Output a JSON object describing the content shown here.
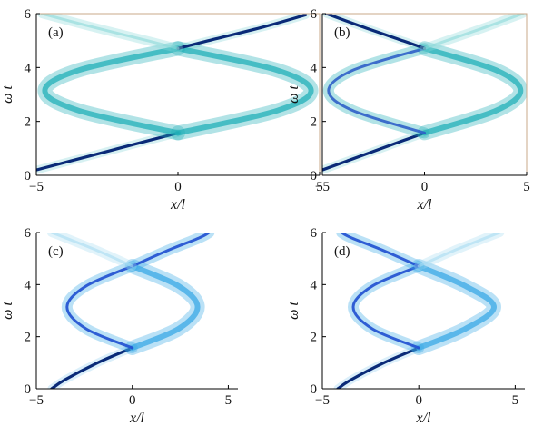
{
  "chart_data": [
    {
      "type": "heatmap",
      "panel_label": "(a)",
      "xlabel": "x/l",
      "ylabel": "ω t",
      "xlim": [
        -5,
        5
      ],
      "ylim": [
        0,
        6
      ],
      "x_ticks": [
        -5,
        0,
        5
      ],
      "y_ticks": [
        0,
        2,
        4,
        6
      ],
      "x_tick_labels": [
        "−5",
        "0",
        "5"
      ],
      "y_tick_labels": [
        "0",
        "2",
        "4",
        "6"
      ],
      "frame": "box",
      "frame_color": "#c8a88a",
      "colors": {
        "dark": "#0a2a78",
        "mid": "#2f5fc8",
        "light": "#22b0b8",
        "pale": "#8cd9d9"
      },
      "branches": [
        {
          "name": "",
          "style": "dark",
          "points": [
            [
              -5,
              0.2
            ],
            [
              -3,
              0.75
            ],
            [
              -1,
              1.3
            ],
            [
              0,
              1.57
            ]
          ]
        },
        {
          "name": "",
          "style": "light",
          "points": [
            [
              0,
              1.57
            ],
            [
              3.5,
              2.4
            ],
            [
              4.7,
              3.14
            ],
            [
              3.5,
              3.9
            ],
            [
              0,
              4.71
            ]
          ]
        },
        {
          "name": "",
          "style": "light",
          "points": [
            [
              0,
              1.57
            ],
            [
              -3.5,
              2.4
            ],
            [
              -4.7,
              3.14
            ],
            [
              -3.5,
              3.9
            ],
            [
              0,
              4.71
            ]
          ]
        },
        {
          "name": "",
          "style": "dark",
          "points": [
            [
              0,
              4.71
            ],
            [
              1,
              4.98
            ],
            [
              3,
              5.5
            ],
            [
              4.5,
              5.95
            ]
          ]
        },
        {
          "name": "",
          "style": "pale",
          "points": [
            [
              0,
              4.71
            ],
            [
              -1,
              4.98
            ],
            [
              -3,
              5.5
            ],
            [
              -4.8,
              6.0
            ]
          ]
        }
      ]
    },
    {
      "type": "heatmap",
      "panel_label": "(b)",
      "xlabel": "x/l",
      "ylabel": "ω t",
      "xlim": [
        -5,
        5
      ],
      "ylim": [
        0,
        6
      ],
      "x_ticks": [
        -5,
        0,
        5
      ],
      "y_ticks": [
        0,
        2,
        4,
        6
      ],
      "x_tick_labels": [
        "−5",
        "0",
        "5"
      ],
      "y_tick_labels": [
        "0",
        "2",
        "4",
        "6"
      ],
      "frame": "box",
      "frame_color": "#c8a88a",
      "colors": {
        "dark": "#0a2a78",
        "mid": "#2f5fc8",
        "light": "#22b0b8",
        "pale": "#8cd9d9"
      },
      "branches": [
        {
          "name": "",
          "style": "dark",
          "points": [
            [
              -5,
              0.2
            ],
            [
              -3,
              0.75
            ],
            [
              -1,
              1.3
            ],
            [
              0,
              1.57
            ]
          ]
        },
        {
          "name": "",
          "style": "light",
          "points": [
            [
              0,
              1.57
            ],
            [
              3.5,
              2.4
            ],
            [
              4.7,
              3.14
            ],
            [
              3.5,
              3.9
            ],
            [
              0,
              4.71
            ]
          ]
        },
        {
          "name": "",
          "style": "mid",
          "points": [
            [
              0,
              1.57
            ],
            [
              -3.5,
              2.4
            ],
            [
              -4.7,
              3.14
            ],
            [
              -3.5,
              3.9
            ],
            [
              0,
              4.71
            ]
          ]
        },
        {
          "name": "",
          "style": "dark",
          "points": [
            [
              0,
              4.71
            ],
            [
              -1,
              4.98
            ],
            [
              -3,
              5.5
            ],
            [
              -4.8,
              6.0
            ]
          ]
        },
        {
          "name": "",
          "style": "pale",
          "points": [
            [
              0,
              4.71
            ],
            [
              1,
              4.98
            ],
            [
              3,
              5.5
            ],
            [
              4.8,
              6.0
            ]
          ]
        }
      ]
    },
    {
      "type": "heatmap",
      "panel_label": "(c)",
      "xlabel": "x/l",
      "ylabel": "ω t",
      "xlim": [
        -5,
        5.5
      ],
      "ylim": [
        0,
        6
      ],
      "x_ticks": [
        -5,
        0,
        5
      ],
      "y_ticks": [
        0,
        2,
        4,
        6
      ],
      "x_tick_labels": [
        "−5",
        "0",
        "5"
      ],
      "y_tick_labels": [
        "0",
        "2",
        "4",
        "6"
      ],
      "frame": "axes",
      "frame_color": "#000000",
      "colors": {
        "dark": "#0a2a78",
        "mid": "#1f4fd0",
        "light": "#3aa8e6",
        "pale": "#a8dcf2"
      },
      "branches": [
        {
          "name": "",
          "style": "dark",
          "points": [
            [
              -4.2,
              0.0
            ],
            [
              -3.5,
              0.35
            ],
            [
              -1.8,
              1.0
            ],
            [
              0,
              1.57
            ]
          ]
        },
        {
          "name": "",
          "style": "light",
          "points": [
            [
              0,
              1.57
            ],
            [
              2.4,
              2.3
            ],
            [
              3.4,
              3.14
            ],
            [
              2.4,
              3.95
            ],
            [
              0,
              4.71
            ]
          ]
        },
        {
          "name": "",
          "style": "mid",
          "points": [
            [
              0,
              1.57
            ],
            [
              -2.4,
              2.3
            ],
            [
              -3.4,
              3.14
            ],
            [
              -2.4,
              3.95
            ],
            [
              0,
              4.71
            ]
          ]
        },
        {
          "name": "",
          "style": "mid",
          "points": [
            [
              0,
              4.71
            ],
            [
              1.8,
              5.3
            ],
            [
              3.5,
              5.8
            ],
            [
              4.0,
              6.0
            ]
          ]
        },
        {
          "name": "",
          "style": "pale",
          "points": [
            [
              0,
              4.71
            ],
            [
              -1.8,
              5.3
            ],
            [
              -3.5,
              5.8
            ],
            [
              -4.2,
              6.0
            ]
          ]
        }
      ]
    },
    {
      "type": "heatmap",
      "panel_label": "(d)",
      "xlabel": "x/l",
      "ylabel": "ω t",
      "xlim": [
        -5,
        5.5
      ],
      "ylim": [
        0,
        6
      ],
      "x_ticks": [
        -5,
        0,
        5
      ],
      "y_ticks": [
        0,
        2,
        4,
        6
      ],
      "x_tick_labels": [
        "−5",
        "0",
        "5"
      ],
      "y_tick_labels": [
        "0",
        "2",
        "4",
        "6"
      ],
      "frame": "axes",
      "frame_color": "#000000",
      "colors": {
        "dark": "#0a2a78",
        "mid": "#1f4fd0",
        "light": "#3aa8e6",
        "pale": "#a8dcf2"
      },
      "branches": [
        {
          "name": "",
          "style": "dark",
          "points": [
            [
              -4.2,
              0.0
            ],
            [
              -3.5,
              0.35
            ],
            [
              -1.8,
              1.0
            ],
            [
              0,
              1.57
            ]
          ]
        },
        {
          "name": "",
          "style": "light",
          "points": [
            [
              0,
              1.57
            ],
            [
              2.4,
              2.3
            ],
            [
              3.9,
              3.14
            ],
            [
              2.4,
              3.95
            ],
            [
              0,
              4.71
            ]
          ]
        },
        {
          "name": "",
          "style": "mid",
          "points": [
            [
              0,
              1.57
            ],
            [
              -2.4,
              2.3
            ],
            [
              -3.4,
              3.14
            ],
            [
              -2.4,
              3.95
            ],
            [
              0,
              4.71
            ]
          ]
        },
        {
          "name": "",
          "style": "mid",
          "points": [
            [
              0,
              4.71
            ],
            [
              -1.8,
              5.3
            ],
            [
              -3.5,
              5.8
            ],
            [
              -4.0,
              6.0
            ]
          ]
        },
        {
          "name": "",
          "style": "pale",
          "points": [
            [
              0,
              4.71
            ],
            [
              1.8,
              5.3
            ],
            [
              3.5,
              5.8
            ],
            [
              4.2,
              6.0
            ]
          ]
        }
      ]
    }
  ]
}
